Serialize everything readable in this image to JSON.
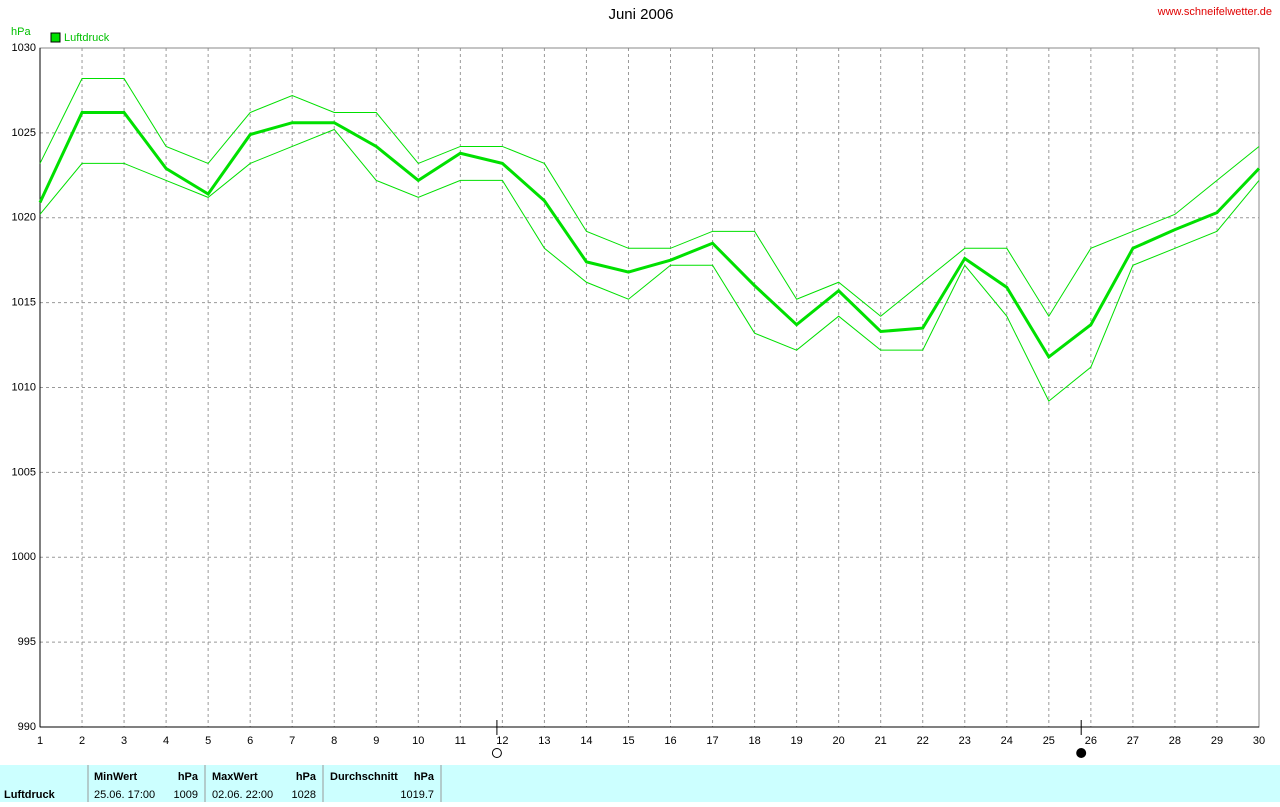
{
  "chart_data": {
    "type": "line",
    "title": "Juni 2006",
    "source": "www.schneifelwetter.de",
    "y_label": "hPa",
    "x": [
      1,
      2,
      3,
      4,
      5,
      6,
      7,
      8,
      9,
      10,
      11,
      12,
      13,
      14,
      15,
      16,
      17,
      18,
      19,
      20,
      21,
      22,
      23,
      24,
      25,
      26,
      27,
      28,
      29,
      30
    ],
    "series": [
      {
        "name": "Luftdruck",
        "color": "#00e000",
        "values": [
          1020.9,
          1026.2,
          1026.2,
          1022.9,
          1021.4,
          1024.9,
          1025.6,
          1025.6,
          1024.2,
          1022.2,
          1023.8,
          1023.2,
          1021.0,
          1017.4,
          1016.8,
          1017.5,
          1018.5,
          1016.0,
          1013.7,
          1015.7,
          1013.3,
          1013.5,
          1017.6,
          1015.9,
          1011.8,
          1013.7,
          1018.2,
          1019.3,
          1020.3,
          1022.9
        ]
      },
      {
        "color": "#00e000",
        "values": [
          1023.2,
          1028.2,
          1028.2,
          1024.2,
          1023.2,
          1026.2,
          1027.2,
          1026.2,
          1026.2,
          1023.2,
          1024.2,
          1024.2,
          1023.2,
          1019.2,
          1018.2,
          1018.2,
          1019.2,
          1019.2,
          1015.2,
          1016.2,
          1014.2,
          1016.2,
          1018.2,
          1018.2,
          1014.2,
          1018.2,
          1019.2,
          1020.2,
          1022.2,
          1024.2
        ]
      },
      {
        "color": "#00e000",
        "values": [
          1020.2,
          1023.2,
          1023.2,
          1022.2,
          1021.2,
          1023.2,
          1024.2,
          1025.2,
          1022.2,
          1021.2,
          1022.2,
          1022.2,
          1018.2,
          1016.2,
          1015.2,
          1017.2,
          1017.2,
          1013.2,
          1012.2,
          1014.2,
          1012.2,
          1012.2,
          1017.2,
          1014.2,
          1009.2,
          1011.2,
          1017.2,
          1018.2,
          1019.2,
          1022.2
        ]
      }
    ],
    "xlim": [
      1,
      30
    ],
    "xticks": [
      1,
      2,
      3,
      4,
      5,
      6,
      7,
      8,
      9,
      10,
      11,
      12,
      13,
      14,
      15,
      16,
      17,
      18,
      19,
      20,
      21,
      22,
      23,
      24,
      25,
      26,
      27,
      28,
      29,
      30
    ],
    "ylim": [
      990,
      1030
    ],
    "yticks": [
      990,
      995,
      1000,
      1005,
      1010,
      1015,
      1020,
      1025,
      1030
    ],
    "grid": true,
    "full_moon_x": 11.87,
    "new_moon_x": 25.77
  },
  "table": {
    "row_label": "Luftdruck",
    "min": {
      "header": "MinWert",
      "unit": "hPa",
      "time": "25.06.  17:00",
      "value": 1009
    },
    "max": {
      "header": "MaxWert",
      "unit": "hPa",
      "time": "02.06.  22:00",
      "value": 1028
    },
    "avg": {
      "header": "Durchschnitt",
      "unit": "hPa",
      "value": 1019.7
    }
  }
}
